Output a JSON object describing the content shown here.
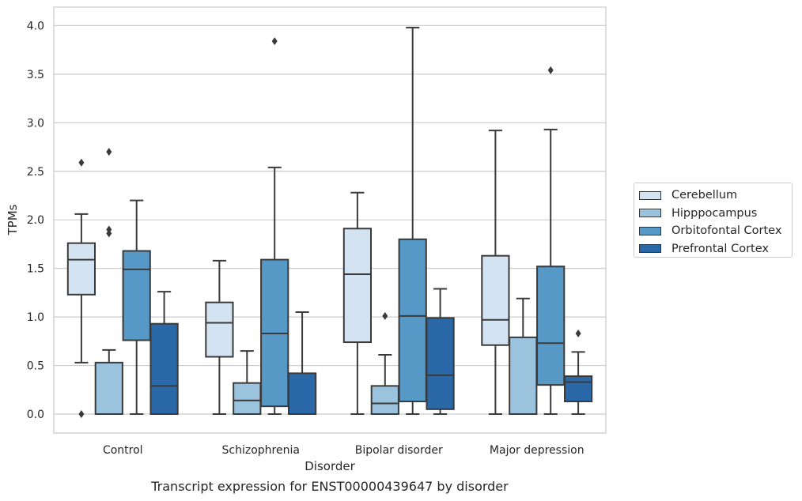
{
  "chart_data": {
    "type": "box",
    "title": "",
    "caption": "Transcript expression for ENST00000439647 by disorder",
    "xlabel": "Disorder",
    "ylabel": "TPMs",
    "ylim": [
      -0.2,
      4.2
    ],
    "yticks": [
      "0.0",
      "0.5",
      "1.0",
      "1.5",
      "2.0",
      "2.5",
      "3.0",
      "3.5",
      "4.0"
    ],
    "grid": "horizontal",
    "legend_position": "right",
    "categories": [
      "Control",
      "Schizophrenia",
      "Bipolar disorder",
      "Major depression"
    ],
    "series": [
      {
        "name": "Cerebellum",
        "color": "#d4e3f2",
        "boxes": [
          {
            "min": 0.53,
            "q1": 1.23,
            "median": 1.59,
            "q3": 1.76,
            "max": 2.06,
            "outliers": [
              2.59,
              0.0
            ]
          },
          {
            "min": 0.0,
            "q1": 0.59,
            "median": 0.94,
            "q3": 1.15,
            "max": 1.58,
            "outliers": []
          },
          {
            "min": 0.0,
            "q1": 0.74,
            "median": 1.44,
            "q3": 1.91,
            "max": 2.28,
            "outliers": []
          },
          {
            "min": 0.0,
            "q1": 0.71,
            "median": 0.97,
            "q3": 1.63,
            "max": 2.92,
            "outliers": []
          }
        ]
      },
      {
        "name": "Hipppocampus",
        "color": "#9cc3dd",
        "boxes": [
          {
            "min": 0.0,
            "q1": 0.0,
            "median": 0.0,
            "q3": 0.53,
            "max": 0.66,
            "outliers": [
              2.7,
              1.9,
              1.86
            ]
          },
          {
            "min": 0.0,
            "q1": 0.0,
            "median": 0.14,
            "q3": 0.32,
            "max": 0.65,
            "outliers": []
          },
          {
            "min": 0.0,
            "q1": 0.0,
            "median": 0.11,
            "q3": 0.29,
            "max": 0.61,
            "outliers": [
              1.01
            ]
          },
          {
            "min": 0.0,
            "q1": 0.0,
            "median": 0.0,
            "q3": 0.79,
            "max": 1.19,
            "outliers": []
          }
        ]
      },
      {
        "name": "Orbitofontal Cortex",
        "color": "#5799c6",
        "boxes": [
          {
            "min": 0.0,
            "q1": 0.76,
            "median": 1.49,
            "q3": 1.68,
            "max": 2.2,
            "outliers": []
          },
          {
            "min": 0.0,
            "q1": 0.08,
            "median": 0.83,
            "q3": 1.59,
            "max": 2.54,
            "outliers": [
              3.84
            ]
          },
          {
            "min": 0.0,
            "q1": 0.13,
            "median": 1.01,
            "q3": 1.8,
            "max": 3.98,
            "outliers": []
          },
          {
            "min": 0.0,
            "q1": 0.3,
            "median": 0.73,
            "q3": 1.52,
            "max": 2.93,
            "outliers": [
              3.54
            ]
          }
        ]
      },
      {
        "name": "Prefrontal Cortex",
        "color": "#2a68a7",
        "boxes": [
          {
            "min": 0.0,
            "q1": 0.0,
            "median": 0.29,
            "q3": 0.93,
            "max": 1.26,
            "outliers": []
          },
          {
            "min": 0.0,
            "q1": 0.0,
            "median": 0.0,
            "q3": 0.42,
            "max": 1.05,
            "outliers": []
          },
          {
            "min": 0.0,
            "q1": 0.05,
            "median": 0.4,
            "q3": 0.99,
            "max": 1.29,
            "outliers": []
          },
          {
            "min": 0.0,
            "q1": 0.13,
            "median": 0.33,
            "q3": 0.39,
            "max": 0.64,
            "outliers": [
              0.83
            ]
          }
        ]
      }
    ]
  }
}
